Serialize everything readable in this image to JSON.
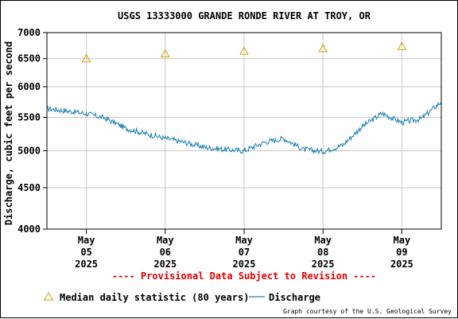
{
  "chart_data": {
    "type": "line",
    "title": "USGS 13333000 GRANDE RONDE RIVER AT TROY, OR",
    "ylabel": "Discharge, cubic feet per second",
    "y_scale": "log",
    "ylim": [
      4000,
      7000
    ],
    "yticks": [
      4000,
      4500,
      5000,
      5500,
      6000,
      6500,
      7000
    ],
    "xlim": [
      "2025-05-04 12:00",
      "2025-05-09 12:00"
    ],
    "xticks": [
      {
        "date": "2025-05-05",
        "label": [
          "May",
          "05",
          "2025"
        ]
      },
      {
        "date": "2025-05-06",
        "label": [
          "May",
          "06",
          "2025"
        ]
      },
      {
        "date": "2025-05-07",
        "label": [
          "May",
          "07",
          "2025"
        ]
      },
      {
        "date": "2025-05-08",
        "label": [
          "May",
          "08",
          "2025"
        ]
      },
      {
        "date": "2025-05-09",
        "label": [
          "May",
          "09",
          "2025"
        ]
      }
    ],
    "grid": true,
    "series": [
      {
        "name": "Median daily statistic (80 years)",
        "style": "triangle-markers",
        "color": "#d4a000",
        "x": [
          "2025-05-05",
          "2025-05-06",
          "2025-05-07",
          "2025-05-08",
          "2025-05-09"
        ],
        "values": [
          6500,
          6590,
          6640,
          6690,
          6730
        ]
      },
      {
        "name": "Discharge",
        "style": "line",
        "color": "#1a7fb5",
        "x": [
          "2025-05-04 12:00",
          "2025-05-04 18:00",
          "2025-05-05 00:00",
          "2025-05-05 06:00",
          "2025-05-05 12:00",
          "2025-05-05 18:00",
          "2025-05-06 00:00",
          "2025-05-06 06:00",
          "2025-05-06 12:00",
          "2025-05-06 18:00",
          "2025-05-07 00:00",
          "2025-05-07 06:00",
          "2025-05-07 12:00",
          "2025-05-07 18:00",
          "2025-05-08 00:00",
          "2025-05-08 06:00",
          "2025-05-08 12:00",
          "2025-05-08 18:00",
          "2025-05-09 00:00",
          "2025-05-09 06:00",
          "2025-05-09 12:00"
        ],
        "values": [
          5640,
          5600,
          5560,
          5480,
          5330,
          5250,
          5180,
          5120,
          5050,
          5020,
          5000,
          5120,
          5180,
          5020,
          4990,
          5080,
          5360,
          5560,
          5420,
          5480,
          5750
        ]
      }
    ],
    "footer_note": "---- Provisional Data Subject to Revision ----",
    "legend": {
      "position": "bottom-left",
      "entries": [
        "Median daily statistic (80 years)",
        "Discharge"
      ]
    },
    "credit": "Graph courtesy of the U.S. Geological Survey"
  }
}
